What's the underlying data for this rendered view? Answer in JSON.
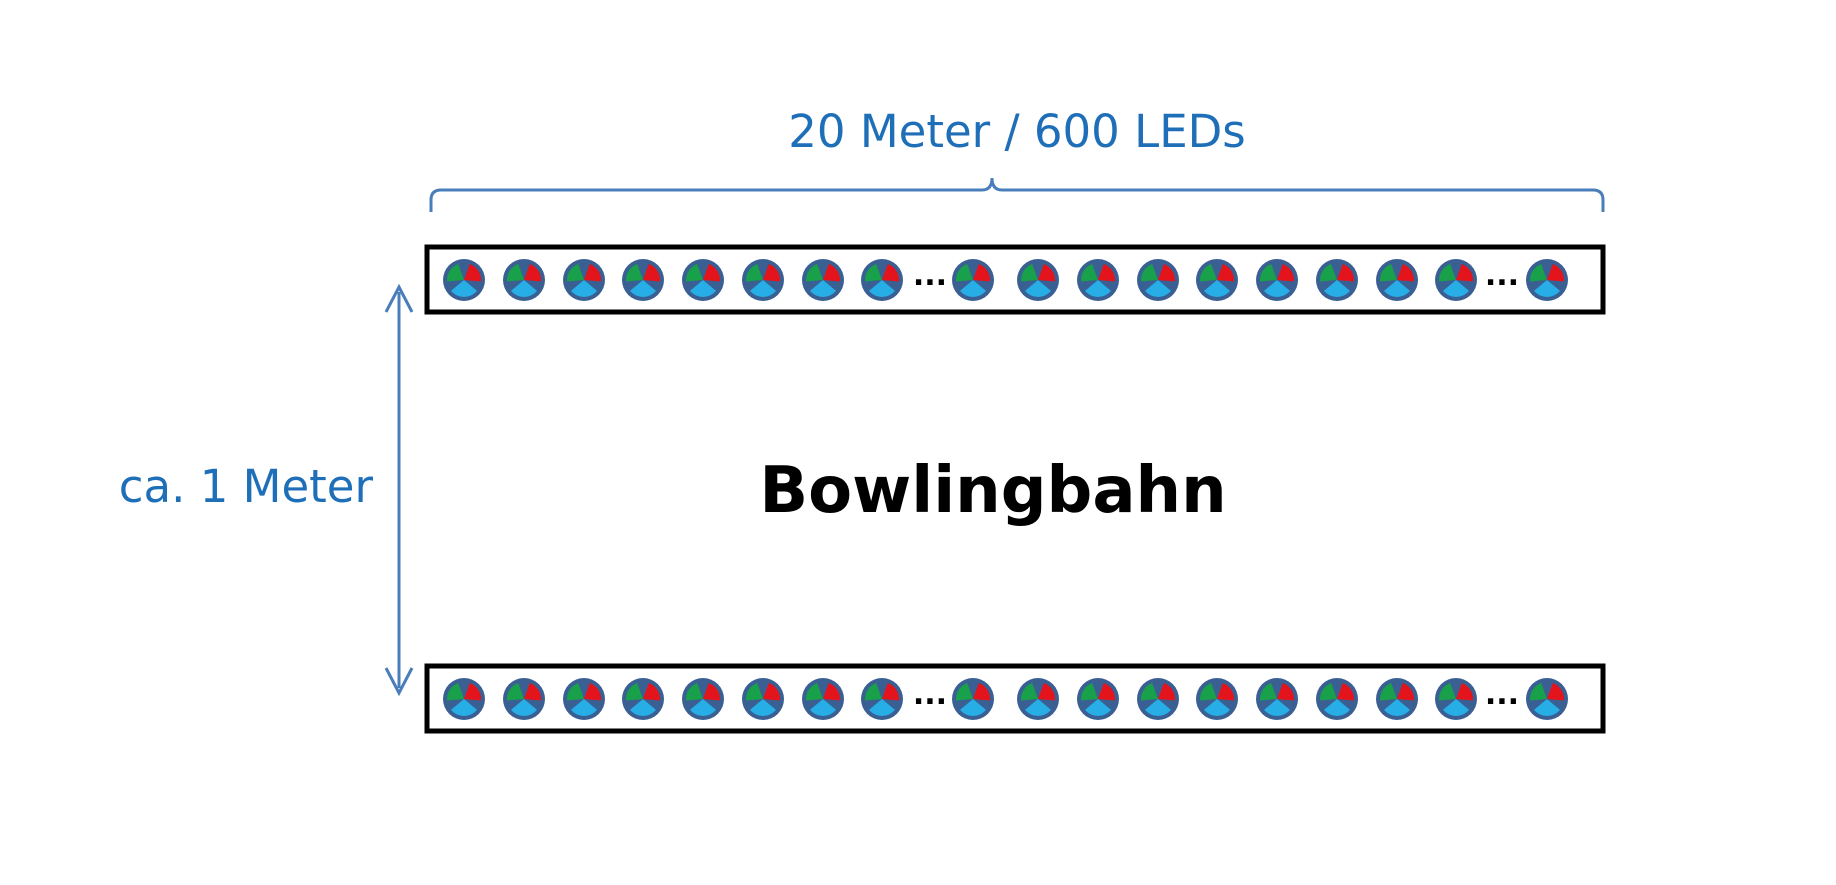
{
  "labels": {
    "length": "20 Meter / 600 LEDs",
    "width": "ca. 1 Meter",
    "lane": "Bowlingbahn",
    "ellipsis": "..."
  },
  "strips": [
    {
      "name": "top-led-strip",
      "segments": [
        8,
        9
      ]
    },
    {
      "name": "bottom-led-strip",
      "segments": [
        8,
        9
      ]
    }
  ],
  "led_icon": "rgb-led-icon",
  "colors": {
    "accent": "#1f6fb8",
    "dimension_line": "#4a7ebb",
    "led_ring": "#3a5f93",
    "led_red": "#e3141b",
    "led_green": "#18a04b",
    "led_blue": "#27aee6",
    "text": "#000000",
    "strip_border": "#000000"
  }
}
